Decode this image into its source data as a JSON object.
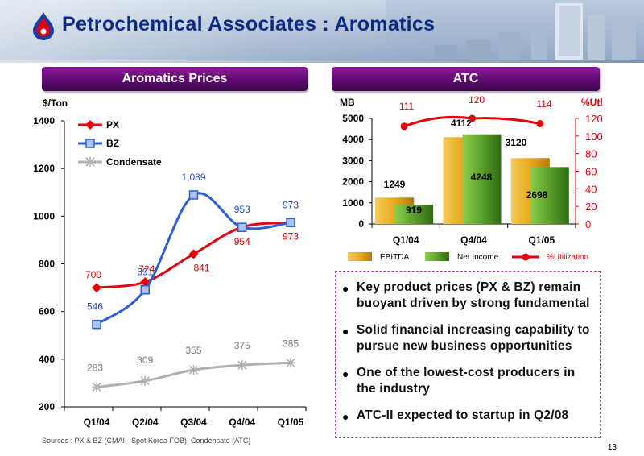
{
  "slide": {
    "title": "Petrochemical Associates : Aromatics",
    "page_number": "13",
    "source_note": "Sources : PX & BZ (CMAI - Spot Korea FOB), Condensate (ATC)"
  },
  "left_panel": {
    "header": "Aromatics Prices"
  },
  "right_panel": {
    "header": "ATC"
  },
  "bullets": [
    "Key product prices (PX & BZ) remain buoyant driven by strong fundamental",
    "Solid financial increasing capability to pursue new business opportunities",
    "One of the lowest-cost producers in the industry",
    "ATC-II expected to startup in Q2/08"
  ],
  "chart_data": [
    {
      "type": "line",
      "ylabel": "$/Ton",
      "ylim": [
        200,
        1400
      ],
      "yticks": [
        200,
        400,
        600,
        800,
        1000,
        1200,
        1400
      ],
      "categories": [
        "Q1/04",
        "Q2/04",
        "Q3/04",
        "Q4/04",
        "Q1/05"
      ],
      "legend_position": "top-left",
      "series": [
        {
          "name": "PX",
          "color": "#e8000b",
          "marker": "diamond",
          "label_color": "#d40000",
          "values": [
            700,
            724,
            841,
            954,
            973
          ],
          "labels": [
            "700",
            "724",
            "841",
            "954",
            "973"
          ]
        },
        {
          "name": "BZ",
          "color": "#2a5fd8",
          "marker": "square",
          "label_color": "#1e4fc0",
          "values": [
            546,
            691,
            1089,
            953,
            973
          ],
          "labels": [
            "546",
            "691",
            "1,089",
            "953",
            "973"
          ]
        },
        {
          "name": "Condensate",
          "color": "#b0b0b0",
          "marker": "star",
          "label_color": "#7a7a7a",
          "values": [
            283,
            309,
            355,
            375,
            385
          ],
          "labels": [
            "283",
            "309",
            "355",
            "375",
            "385"
          ]
        }
      ]
    },
    {
      "type": "bar",
      "ylabel": "MB",
      "ylim": [
        0,
        5000
      ],
      "yticks": [
        0,
        1000,
        2000,
        3000,
        4000,
        5000
      ],
      "y2label": "%Utl",
      "y2lim": [
        0,
        120
      ],
      "y2ticks": [
        0,
        20,
        40,
        60,
        80,
        100,
        120
      ],
      "categories": [
        "Q1/04",
        "Q4/04",
        "Q1/05"
      ],
      "series": [
        {
          "name": "EBITDA",
          "color": "#e9a91c",
          "values": [
            1249,
            4112,
            3120
          ],
          "labels": [
            "1249",
            "4112",
            "3120"
          ]
        },
        {
          "name": "Net Income",
          "color": "#5aa02a",
          "values": [
            919,
            4248,
            2698
          ],
          "labels": [
            "919",
            "4248",
            "2698"
          ]
        },
        {
          "name": "%Utilization",
          "color": "#e8000b",
          "axis": "secondary",
          "values": [
            111,
            120,
            114
          ],
          "labels": [
            "111",
            "120",
            "114"
          ]
        }
      ]
    }
  ]
}
